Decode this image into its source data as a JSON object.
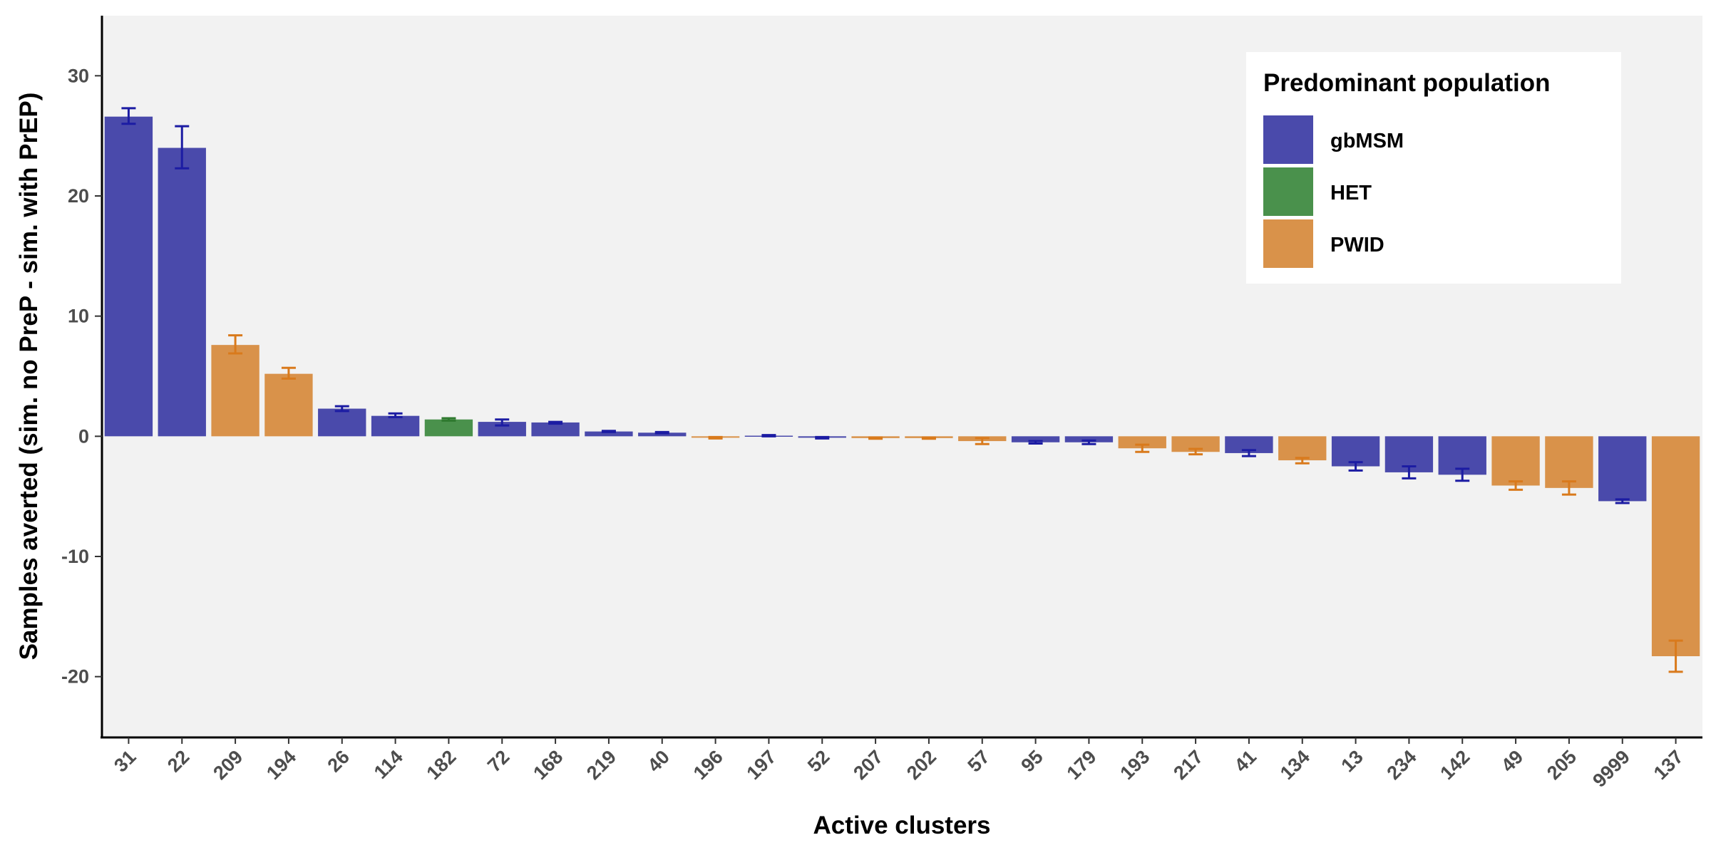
{
  "chart_data": {
    "type": "bar",
    "title": "",
    "xlabel": "Active clusters",
    "ylabel": "Samples averted (sim. no PreP - sim. with PrEP)",
    "ylim": [
      -25,
      35
    ],
    "yticks": [
      -20,
      -10,
      0,
      10,
      20,
      30
    ],
    "grid": false,
    "legend": {
      "title": "Predominant population",
      "placement": "top-right",
      "entries": [
        {
          "name": "gbMSM",
          "color": "#4a4aab",
          "error_color": "#1c1ca3"
        },
        {
          "name": "HET",
          "color": "#4a914c",
          "error_color": "#2f7a2f"
        },
        {
          "name": "PWID",
          "color": "#d9924a",
          "error_color": "#d97a1c"
        }
      ]
    },
    "categories": [
      "31",
      "22",
      "209",
      "194",
      "26",
      "114",
      "182",
      "72",
      "168",
      "219",
      "40",
      "196",
      "197",
      "52",
      "207",
      "202",
      "57",
      "95",
      "179",
      "193",
      "217",
      "41",
      "134",
      "13",
      "234",
      "142",
      "49",
      "205",
      "9999",
      "137"
    ],
    "values": [
      26.6,
      24.0,
      7.6,
      5.2,
      2.3,
      1.7,
      1.4,
      1.2,
      1.15,
      0.4,
      0.3,
      -0.12,
      0.05,
      -0.12,
      -0.15,
      -0.15,
      -0.4,
      -0.5,
      -0.5,
      -1.0,
      -1.3,
      -1.4,
      -2.0,
      -2.5,
      -3.0,
      -3.2,
      -4.1,
      -4.3,
      -5.4,
      -18.3
    ],
    "error_low": [
      26.0,
      22.3,
      6.9,
      4.8,
      2.1,
      1.6,
      1.3,
      0.9,
      1.05,
      0.35,
      0.25,
      -0.18,
      0.0,
      -0.18,
      -0.2,
      -0.2,
      -0.65,
      -0.6,
      -0.65,
      -1.3,
      -1.5,
      -1.65,
      -2.25,
      -2.85,
      -3.5,
      -3.7,
      -4.45,
      -4.85,
      -5.55,
      -19.6
    ],
    "error_high": [
      27.3,
      25.8,
      8.4,
      5.7,
      2.5,
      1.9,
      1.5,
      1.4,
      1.2,
      0.45,
      0.35,
      -0.06,
      0.1,
      -0.06,
      -0.1,
      -0.1,
      -0.15,
      -0.4,
      -0.35,
      -0.7,
      -1.05,
      -1.15,
      -1.8,
      -2.15,
      -2.5,
      -2.7,
      -3.75,
      -3.75,
      -5.25,
      -17.0
    ],
    "groups": [
      "gbMSM",
      "gbMSM",
      "PWID",
      "PWID",
      "gbMSM",
      "gbMSM",
      "HET",
      "gbMSM",
      "gbMSM",
      "gbMSM",
      "gbMSM",
      "PWID",
      "gbMSM",
      "gbMSM",
      "PWID",
      "PWID",
      "PWID",
      "gbMSM",
      "gbMSM",
      "PWID",
      "PWID",
      "gbMSM",
      "PWID",
      "gbMSM",
      "gbMSM",
      "gbMSM",
      "PWID",
      "PWID",
      "gbMSM",
      "PWID"
    ],
    "panel_background": "#f2f2f2"
  }
}
